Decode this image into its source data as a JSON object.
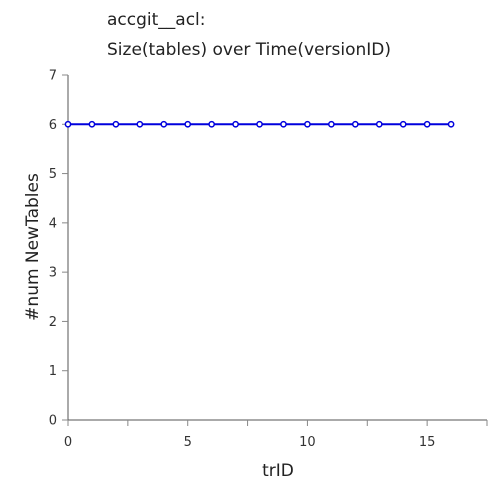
{
  "chart_data": {
    "type": "line",
    "title_lines": [
      "accgit__acl:",
      "Size(tables) over Time(versionID)"
    ],
    "xlabel": "trID",
    "ylabel": "#num NewTables",
    "xlim": [
      0,
      17.5
    ],
    "ylim": [
      0,
      7
    ],
    "x_ticks": [
      0,
      5,
      10,
      15
    ],
    "y_ticks": [
      0,
      1,
      2,
      3,
      4,
      5,
      6,
      7
    ],
    "grid": false,
    "series": [
      {
        "color": "#0000dd",
        "x": [
          0,
          1,
          2,
          3,
          4,
          5,
          6,
          7,
          8,
          9,
          10,
          11,
          12,
          13,
          14,
          15,
          16
        ],
        "y": [
          6,
          6,
          6,
          6,
          6,
          6,
          6,
          6,
          6,
          6,
          6,
          6,
          6,
          6,
          6,
          6,
          6
        ]
      }
    ]
  }
}
